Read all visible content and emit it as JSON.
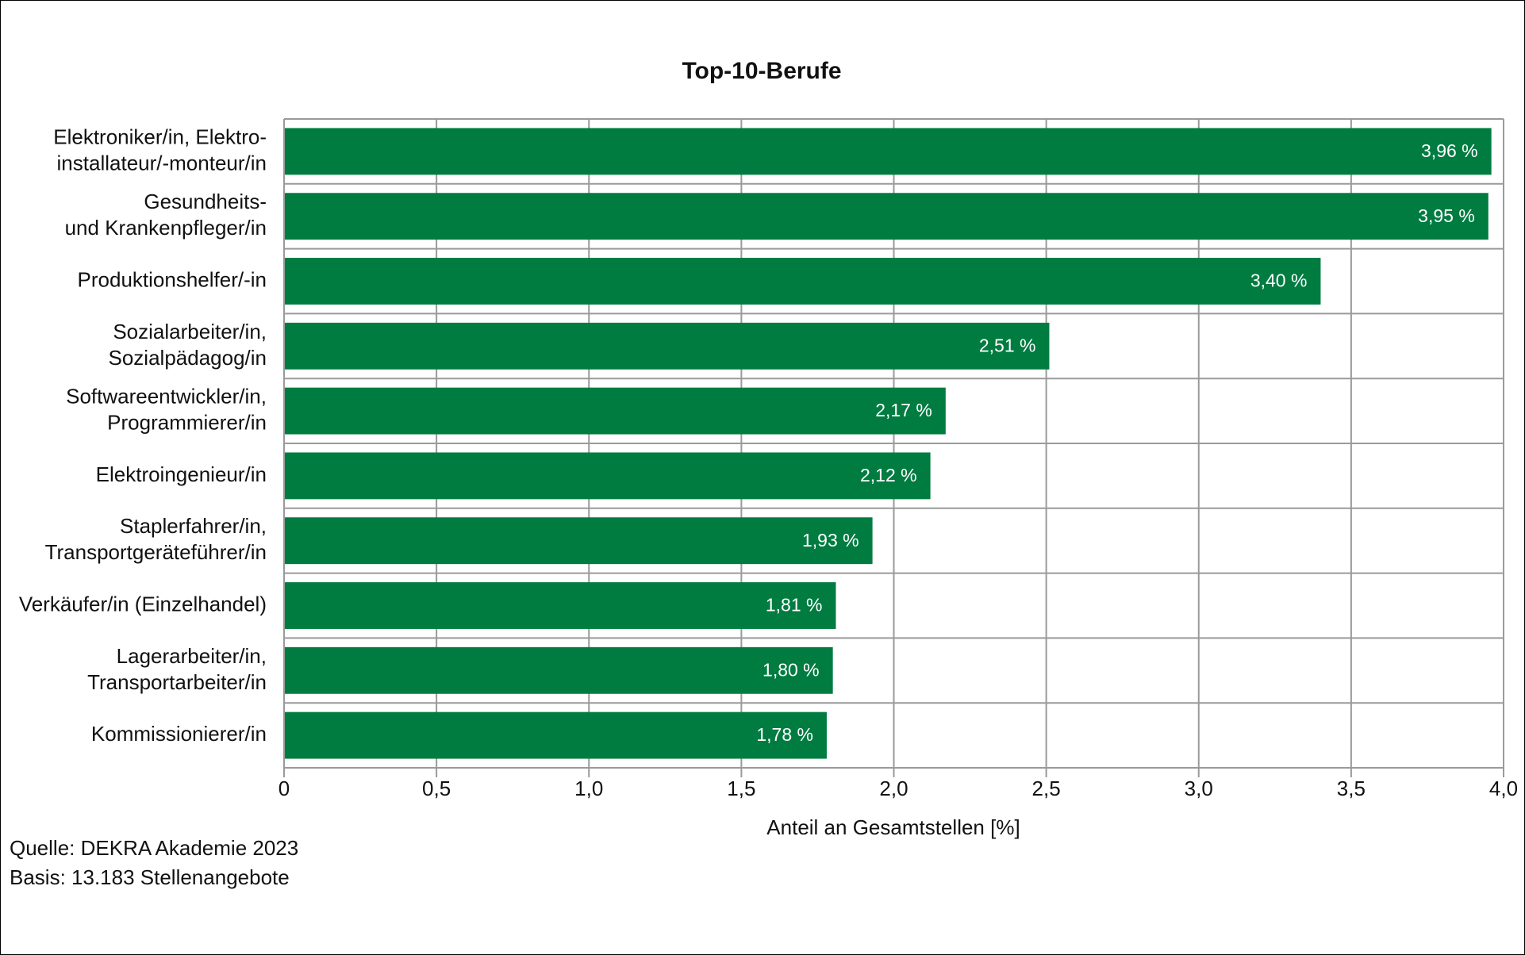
{
  "chart_data": {
    "type": "hbar",
    "title": "Top-10-Berufe",
    "categories": [
      "Elektroniker/in, Elektro-\ninstallateur/-monteur/in",
      "Gesundheits-\nund Krankenpfleger/in",
      "Produktionshelfer/-in",
      "Sozialarbeiter/in,\nSozialpädagog/in",
      "Softwareentwickler/in,\nProgrammierer/in",
      "Elektroingenieur/in",
      "Staplerfahrer/in,\nTransportgeräteführer/in",
      "Verkäufer/in (Einzelhandel)",
      "Lagerarbeiter/in,\nTransportarbeiter/in",
      "Kommissionierer/in"
    ],
    "values": [
      3.96,
      3.95,
      3.4,
      2.51,
      2.17,
      2.12,
      1.93,
      1.81,
      1.8,
      1.78
    ],
    "value_labels": [
      "3,96 %",
      "3,95 %",
      "3,40 %",
      "2,51 %",
      "2,17 %",
      "2,12 %",
      "1,93 %",
      "1,81 %",
      "1,80 %",
      "1,78 %"
    ],
    "color": "#007c41",
    "xlabel": "Anteil an Gesamtstellen [%]",
    "xlim": [
      0,
      4
    ],
    "xticks": [
      0,
      {
        "value": 0.5,
        "label": "0,5"
      },
      {
        "value": 1,
        "label": "1,0"
      },
      {
        "value": 1.5,
        "label": "1,5"
      },
      {
        "value": 2,
        "label": "2,0"
      },
      {
        "value": 2.5,
        "label": "2,5"
      },
      {
        "value": 3,
        "label": "3,0"
      },
      {
        "value": 3.5,
        "label": "3,5"
      },
      {
        "value": 4,
        "label": "4,0"
      }
    ],
    "grid": true,
    "notes": [
      "Quelle: DEKRA Akademie 2023",
      "Basis: 13.183 Stellenangebote"
    ]
  }
}
